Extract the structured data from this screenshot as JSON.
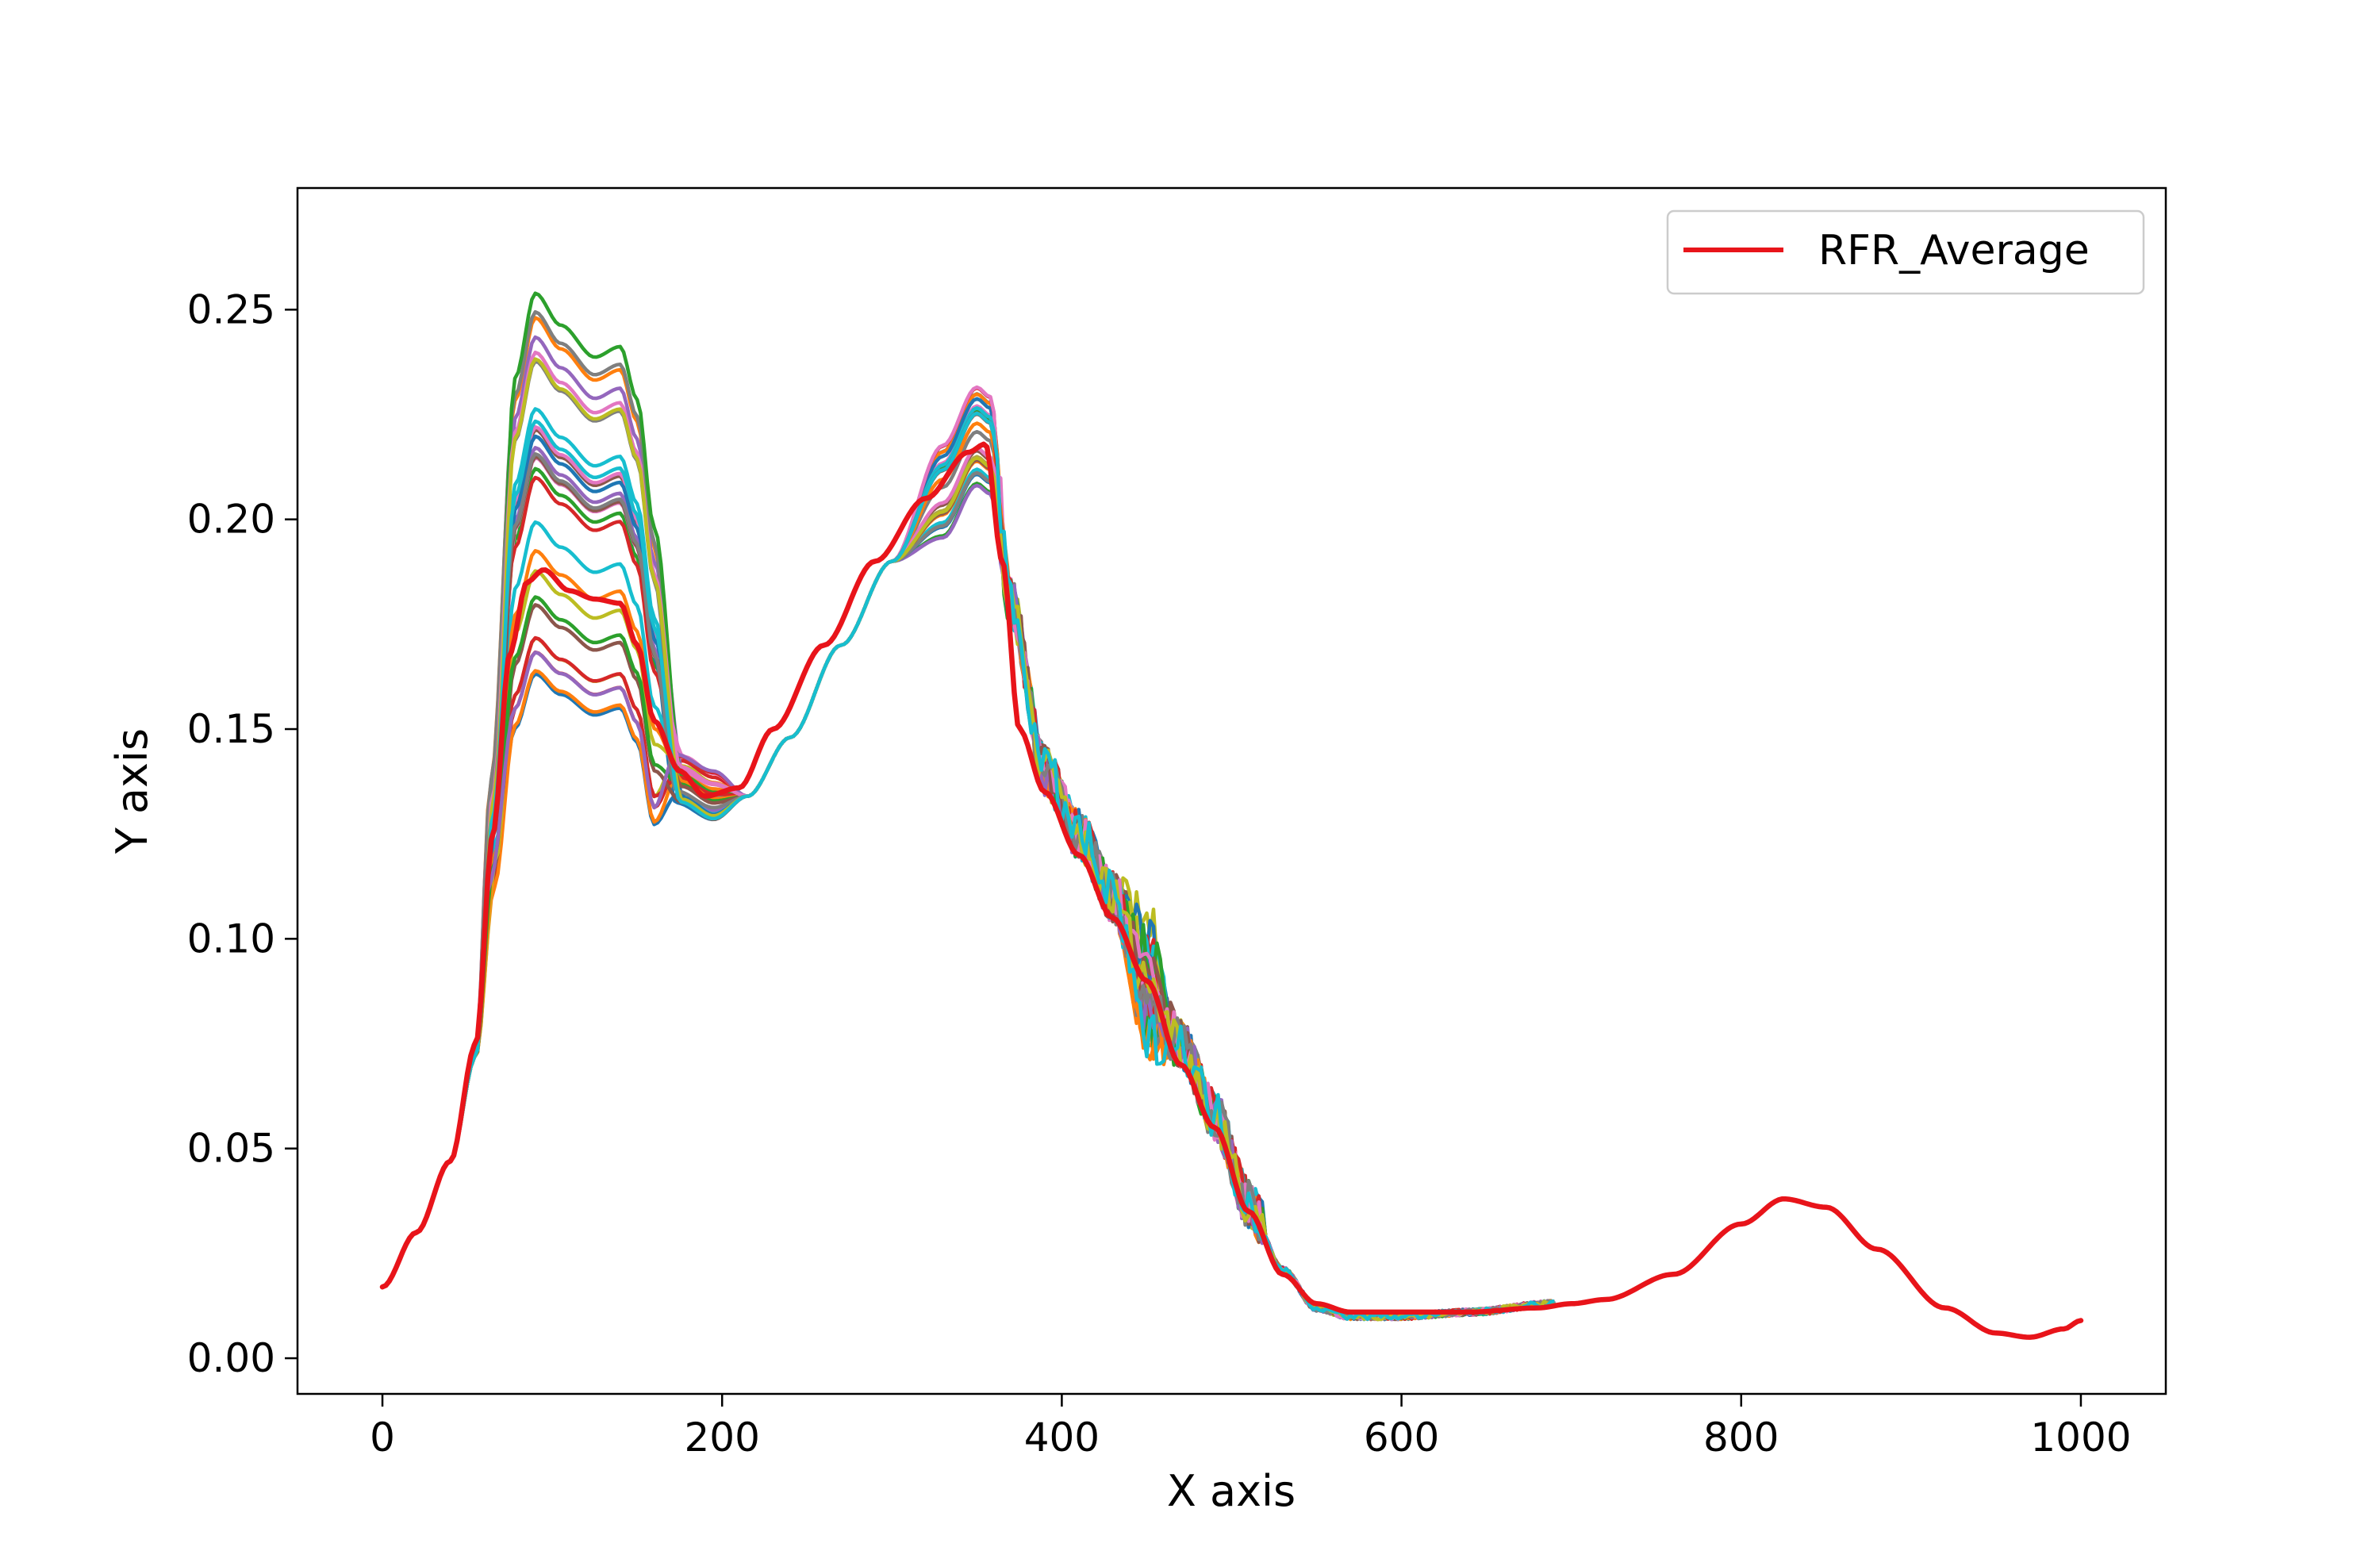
{
  "chart_data": {
    "type": "line",
    "xlabel": "X axis",
    "ylabel": "Y axis",
    "xlim": [
      -50,
      1050
    ],
    "ylim": [
      -0.0085,
      0.279
    ],
    "xticks": [
      0,
      200,
      400,
      600,
      800,
      1000
    ],
    "xtick_labels": [
      "0",
      "200",
      "400",
      "600",
      "800",
      "1000"
    ],
    "yticks": [
      0.0,
      0.05,
      0.1,
      0.15,
      0.2,
      0.25
    ],
    "ytick_labels": [
      "0.00",
      "0.05",
      "0.10",
      "0.15",
      "0.20",
      "0.25"
    ],
    "grid": false,
    "legend": {
      "location": "top-right",
      "entries": [
        "RFR_Average"
      ]
    },
    "ensemble": {
      "count": 30,
      "x_range": [
        0,
        690
      ],
      "palette": [
        "#1f77b4",
        "#ff7f0e",
        "#2ca02c",
        "#d62728",
        "#9467bd",
        "#8c564b",
        "#e377c2",
        "#7f7f7f",
        "#bcbd22",
        "#17becf"
      ],
      "peak1_range": [
        0.145,
        0.266
      ],
      "peak2_range": [
        0.206,
        0.232
      ]
    },
    "series": [
      {
        "name": "RFR_Average",
        "color": "#e8141a",
        "x": [
          0,
          20,
          40,
          55,
          65,
          75,
          85,
          95,
          110,
          125,
          140,
          150,
          160,
          175,
          190,
          210,
          230,
          260,
          290,
          320,
          345,
          355,
          365,
          375,
          390,
          410,
          430,
          450,
          470,
          490,
          510,
          530,
          550,
          570,
          600,
          640,
          680,
          700,
          720,
          760,
          800,
          825,
          850,
          880,
          920,
          950,
          970,
          990,
          1000
        ],
        "values": [
          0.017,
          0.03,
          0.047,
          0.075,
          0.125,
          0.168,
          0.185,
          0.188,
          0.183,
          0.181,
          0.18,
          0.17,
          0.152,
          0.14,
          0.134,
          0.136,
          0.15,
          0.17,
          0.19,
          0.205,
          0.216,
          0.218,
          0.19,
          0.15,
          0.135,
          0.12,
          0.105,
          0.09,
          0.07,
          0.055,
          0.035,
          0.02,
          0.013,
          0.011,
          0.011,
          0.011,
          0.012,
          0.013,
          0.014,
          0.02,
          0.032,
          0.038,
          0.036,
          0.026,
          0.012,
          0.006,
          0.005,
          0.007,
          0.009
        ]
      }
    ]
  }
}
